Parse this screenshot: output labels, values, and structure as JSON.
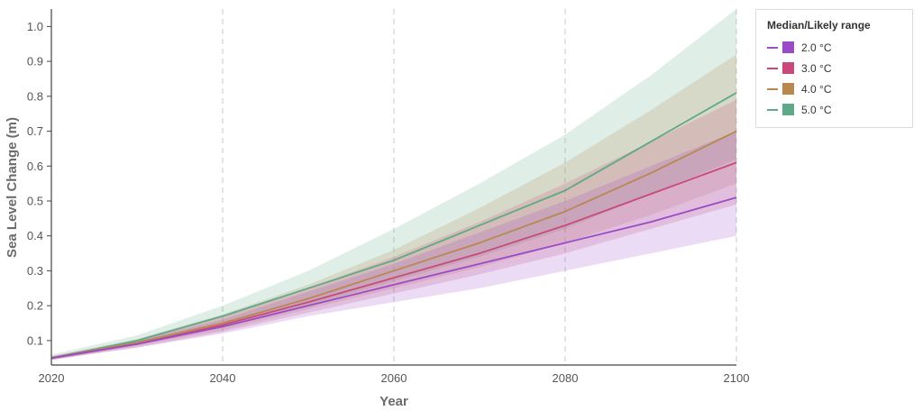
{
  "chart_data": {
    "type": "line",
    "xlabel": "Year",
    "ylabel": "Sea Level Change (m)",
    "xlim": [
      2020,
      2100
    ],
    "ylim": [
      0.03,
      1.05
    ],
    "x": [
      2020,
      2030,
      2040,
      2050,
      2060,
      2070,
      2080,
      2090,
      2100
    ],
    "x_ticks": [
      "2020",
      "2040",
      "2060",
      "2080",
      "2100"
    ],
    "y_ticks": [
      "0.1",
      "0.2",
      "0.3",
      "0.4",
      "0.5",
      "0.6",
      "0.7",
      "0.8",
      "0.9",
      "1.0"
    ],
    "grid": "vertical dashed",
    "legend": {
      "title": "Median/Likely range",
      "placement": "right"
    },
    "series": [
      {
        "name": "2.0 °C",
        "color": "#9b4bc6",
        "median": [
          0.05,
          0.09,
          0.14,
          0.2,
          0.26,
          0.32,
          0.38,
          0.44,
          0.51
        ],
        "lower": [
          0.045,
          0.08,
          0.12,
          0.17,
          0.21,
          0.25,
          0.3,
          0.35,
          0.4
        ],
        "upper": [
          0.055,
          0.1,
          0.16,
          0.24,
          0.32,
          0.41,
          0.5,
          0.6,
          0.7
        ]
      },
      {
        "name": "3.0 °C",
        "color": "#c9497a",
        "median": [
          0.05,
          0.09,
          0.145,
          0.21,
          0.28,
          0.35,
          0.43,
          0.52,
          0.61
        ],
        "lower": [
          0.045,
          0.08,
          0.125,
          0.18,
          0.235,
          0.29,
          0.35,
          0.42,
          0.49
        ],
        "upper": [
          0.055,
          0.1,
          0.17,
          0.25,
          0.34,
          0.44,
          0.55,
          0.67,
          0.79
        ]
      },
      {
        "name": "4.0 °C",
        "color": "#b9884f",
        "median": [
          0.05,
          0.095,
          0.15,
          0.22,
          0.3,
          0.38,
          0.47,
          0.58,
          0.7
        ],
        "lower": [
          0.045,
          0.085,
          0.13,
          0.19,
          0.25,
          0.31,
          0.38,
          0.46,
          0.55
        ],
        "upper": [
          0.055,
          0.105,
          0.175,
          0.26,
          0.36,
          0.48,
          0.61,
          0.76,
          0.92
        ]
      },
      {
        "name": "5.0 °C",
        "color": "#5ea989",
        "median": [
          0.05,
          0.1,
          0.17,
          0.25,
          0.33,
          0.43,
          0.53,
          0.67,
          0.81
        ],
        "lower": [
          0.045,
          0.09,
          0.14,
          0.2,
          0.27,
          0.34,
          0.42,
          0.52,
          0.62
        ],
        "upper": [
          0.06,
          0.115,
          0.2,
          0.3,
          0.42,
          0.55,
          0.69,
          0.86,
          1.05
        ]
      }
    ]
  }
}
